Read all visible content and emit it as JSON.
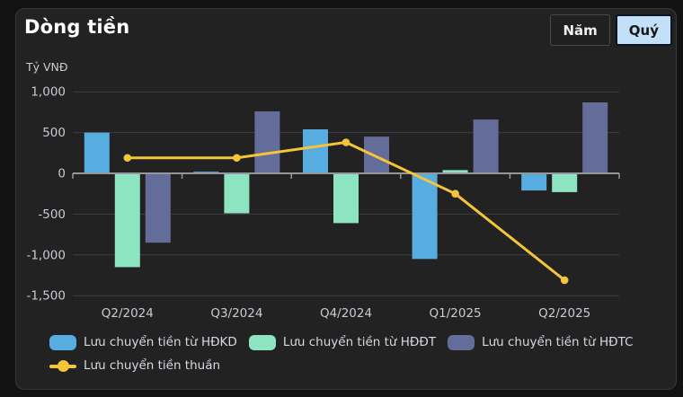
{
  "header": {
    "title": "Dòng tiền",
    "toggle": {
      "year_label": "Năm",
      "quarter_label": "Quý",
      "selected": "Quý"
    }
  },
  "colors": {
    "card_bg": "#222222",
    "outer_bg": "#121212",
    "grid_line": "#3d3d44",
    "zero_axis": "#96969e",
    "tick_text": "#c8cbd4",
    "legend_text": "#d6d9e2",
    "active_button_bg": "#c2e0f8",
    "bar_hdkd": "#58ade0",
    "bar_hddt": "#8de4c1",
    "bar_hdtc": "#646d99",
    "net_line": "#f3c53a"
  },
  "chart_data": {
    "type": "bar+line",
    "title": "Dòng tiền",
    "unit_label": "Tỷ VNĐ",
    "categories": [
      "Q2/2024",
      "Q3/2024",
      "Q4/2024",
      "Q1/2025",
      "Q2/2025"
    ],
    "series": [
      {
        "name": "Lưu chuyển tiền từ HĐKD",
        "type": "bar",
        "color": "#58ade0",
        "values": [
          500,
          20,
          540,
          -1050,
          -210
        ]
      },
      {
        "name": "Lưu chuyển tiền từ HĐĐT",
        "type": "bar",
        "color": "#8de4c1",
        "values": [
          -1150,
          -490,
          -610,
          40,
          -230
        ]
      },
      {
        "name": "Lưu chuyển tiền từ HĐTC",
        "type": "bar",
        "color": "#646d99",
        "values": [
          -850,
          760,
          450,
          660,
          870
        ]
      },
      {
        "name": "Lưu chuyển tiền thuần",
        "type": "line",
        "color": "#f3c53a",
        "values": [
          190,
          190,
          380,
          -250,
          -1310
        ]
      }
    ],
    "y_ticks": [
      1000,
      500,
      0,
      -500,
      -1000,
      -1500
    ],
    "ylim": [
      -1500,
      1000
    ],
    "grid": true,
    "legend_position": "bottom"
  }
}
